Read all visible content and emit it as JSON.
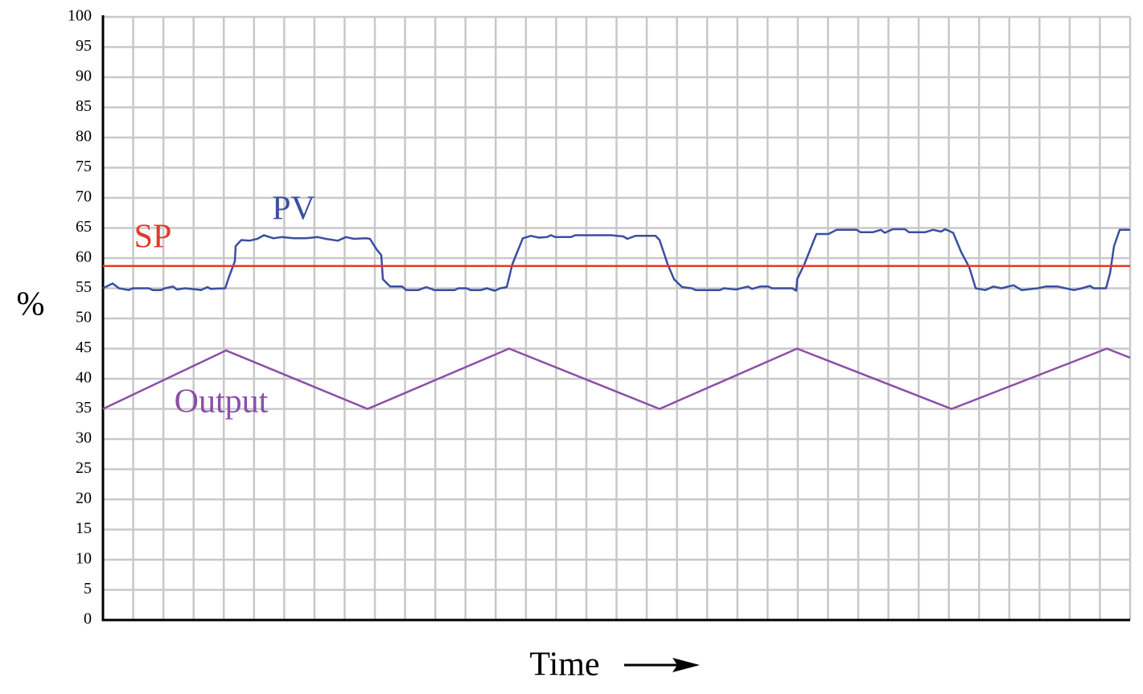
{
  "chart_data": {
    "type": "line",
    "x_label": "Time",
    "y_label": "%",
    "xlim": [
      0,
      1277
    ],
    "ylim": [
      0,
      100
    ],
    "yticks": [
      0,
      5,
      10,
      15,
      20,
      25,
      30,
      35,
      40,
      45,
      50,
      55,
      60,
      65,
      70,
      75,
      80,
      85,
      90,
      95,
      100
    ],
    "grid": true,
    "series": [
      {
        "name": "PV",
        "color": "#3a4fa0",
        "x": [
          0,
          12,
          20,
          32,
          37,
          57,
          62,
          72,
          77,
          87,
          92,
          102,
          117,
          122,
          130,
          134,
          152,
          157,
          164,
          165,
          172,
          182,
          192,
          200,
          212,
          222,
          237,
          252,
          267,
          277,
          292,
          302,
          312,
          327,
          332,
          340,
          346,
          348,
          357,
          372,
          377,
          392,
          402,
          412,
          437,
          442,
          452,
          457,
          470,
          477,
          487,
          494,
          502,
          509,
          515,
          522,
          532,
          542,
          552,
          557,
          562,
          582,
          587,
          632,
          647,
          652,
          662,
          687,
          692,
          702,
          710,
          720,
          732,
          737,
          767,
          772,
          787,
          802,
          807,
          817,
          827,
          832,
          857,
          862,
          863,
          872,
          887,
          902,
          912,
          937,
          942,
          957,
          967,
          972,
          982,
          997,
          1002,
          1022,
          1032,
          1042,
          1047,
          1057,
          1067,
          1077,
          1085,
          1097,
          1107,
          1117,
          1132,
          1142,
          1162,
          1172,
          1187,
          1207,
          1217,
          1227,
          1232,
          1247,
          1252,
          1257,
          1264,
          1277
        ],
        "values": [
          55,
          55.8,
          55,
          54.7,
          55,
          55,
          54.7,
          54.7,
          55,
          55.3,
          54.8,
          55,
          54.8,
          54.7,
          55.2,
          54.9,
          55,
          57,
          59.5,
          62,
          63,
          62.9,
          63.2,
          63.8,
          63.3,
          63.5,
          63.3,
          63.3,
          63.5,
          63.2,
          62.9,
          63.5,
          63.2,
          63.3,
          63.2,
          61.5,
          60.5,
          56.5,
          55.3,
          55.3,
          54.7,
          54.7,
          55.2,
          54.7,
          54.7,
          55,
          55,
          54.7,
          54.7,
          55,
          54.6,
          55,
          55.2,
          59,
          61,
          63.3,
          63.7,
          63.4,
          63.5,
          63.8,
          63.5,
          63.5,
          63.8,
          63.8,
          63.6,
          63.2,
          63.7,
          63.7,
          63,
          59,
          56.5,
          55.2,
          55,
          54.7,
          54.7,
          55,
          54.8,
          55.3,
          54.9,
          55.3,
          55.3,
          55,
          55,
          54.6,
          56.5,
          59,
          64,
          64,
          64.7,
          64.7,
          64.3,
          64.3,
          64.7,
          64.2,
          64.8,
          64.8,
          64.3,
          64.3,
          64.7,
          64.4,
          64.8,
          64.2,
          61,
          58.5,
          55,
          54.7,
          55.3,
          55,
          55.5,
          54.7,
          55,
          55.3,
          55.3,
          54.7,
          55,
          55.4,
          55,
          55,
          57.5,
          62,
          64.7,
          64.7
        ]
      },
      {
        "name": "SP",
        "color": "#e03a2a",
        "x": [
          0,
          1277
        ],
        "values": [
          58.7,
          58.7
        ]
      },
      {
        "name": "Output",
        "color": "#8b4fa8",
        "x": [
          0,
          153,
          329,
          505,
          692,
          863,
          1055,
          1248,
          1277
        ],
        "values": [
          35,
          44.7,
          35,
          45,
          35,
          45,
          35,
          45,
          43.5
        ]
      }
    ]
  }
}
